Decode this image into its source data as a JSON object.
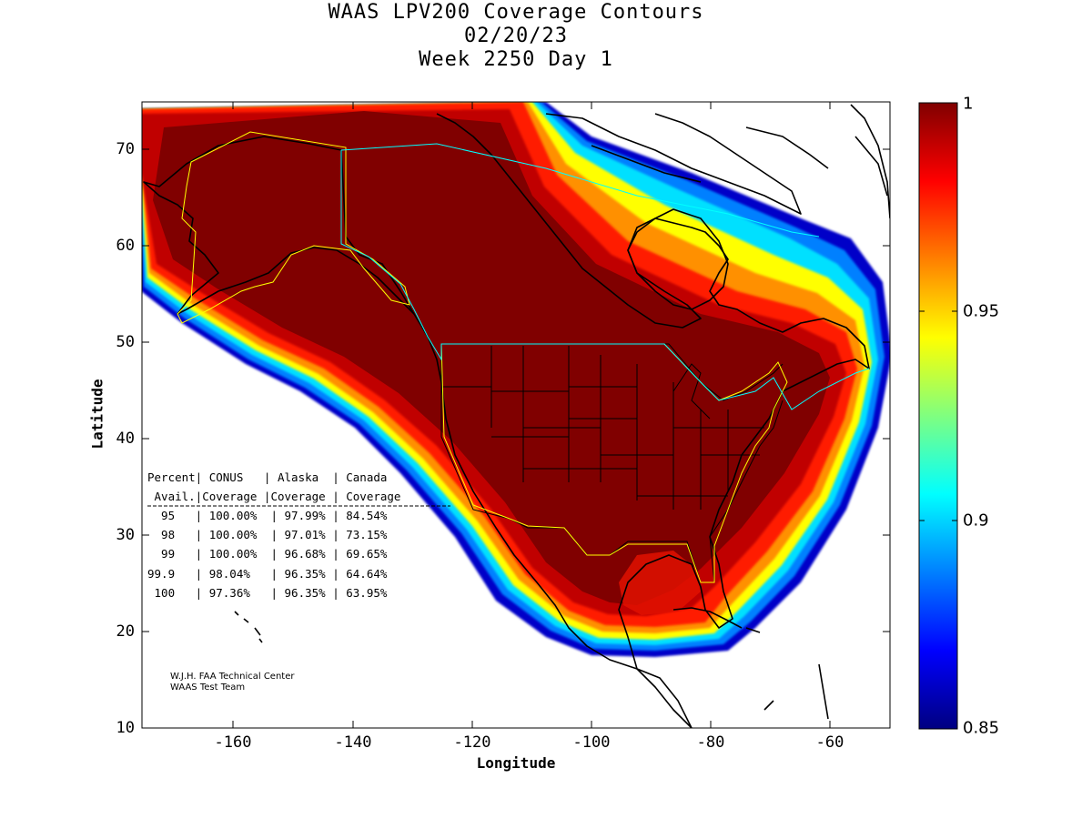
{
  "title": {
    "line1": "WAAS LPV200 Coverage Contours",
    "line2": "02/20/23",
    "line3": "Week 2250 Day 1"
  },
  "axes": {
    "xlabel": "Longitude",
    "ylabel": "Latitude",
    "xticks": [
      "-160",
      "-140",
      "-120",
      "-100",
      "-80",
      "-60"
    ],
    "yticks": [
      "70",
      "60",
      "50",
      "40",
      "30",
      "20",
      "10"
    ],
    "xrange": [
      -175,
      -50
    ],
    "yrange": [
      10,
      75
    ]
  },
  "colorbar": {
    "ticks": [
      "1",
      "0.95",
      "0.9",
      "0.85"
    ],
    "range": [
      0.85,
      1.0
    ],
    "colormap": "jet"
  },
  "table": {
    "header1": "Percent| CONUS   | Alaska  | Canada",
    "header2": " Avail.|Coverage |Coverage | Coverage",
    "separator": "-------------------------------------",
    "rows": [
      "  95   | 100.00%  | 97.99% | 84.54%",
      "  98   | 100.00%  | 97.01% | 73.15%",
      "  99   | 100.00%  | 96.68% | 69.65%",
      "99.9   | 98.04%   | 96.35% | 64.64%",
      " 100   | 97.36%   | 96.35% | 63.95%"
    ]
  },
  "credit": {
    "line1": "W.J.H. FAA Technical Center",
    "line2": "WAAS Test Team"
  },
  "colors": {
    "dark_red": "#800000",
    "red": "#ff0000",
    "orange": "#ff8000",
    "yellow": "#ffff00",
    "cyan": "#00ffff",
    "blue": "#0000ff",
    "navy": "#000080"
  }
}
